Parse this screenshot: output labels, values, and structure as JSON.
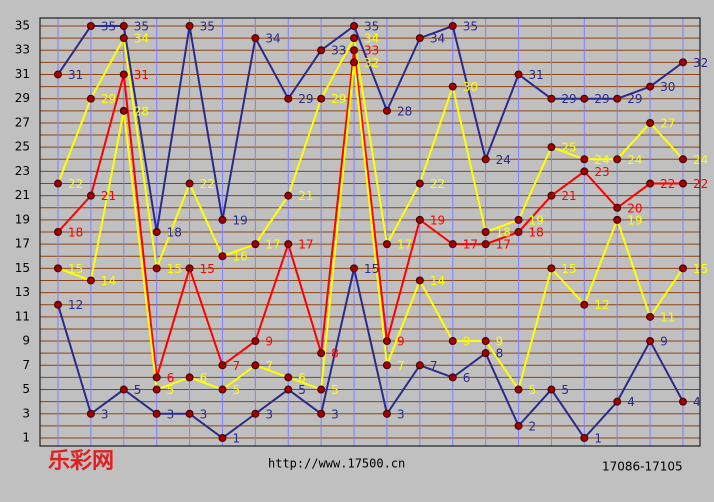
{
  "chart_data": {
    "type": "line",
    "categories": [
      null,
      null,
      null,
      null,
      null,
      null,
      null,
      null,
      null,
      null,
      null,
      null,
      null,
      null,
      null,
      null,
      null,
      null,
      null,
      null
    ],
    "ylim": [
      1,
      35
    ],
    "yticks": [
      1,
      3,
      5,
      7,
      9,
      11,
      13,
      15,
      17,
      19,
      21,
      23,
      25,
      27,
      29,
      31,
      33,
      35
    ],
    "grid": true,
    "series": [
      {
        "color": "#2b2b8c",
        "values": [
          31,
          35,
          35,
          18,
          35,
          19,
          34,
          29,
          33,
          35,
          28,
          34,
          35,
          24,
          31,
          29,
          29,
          29,
          30,
          32
        ]
      },
      {
        "color": "#ffff00",
        "values": [
          22,
          29,
          34,
          15,
          22,
          16,
          17,
          21,
          29,
          34,
          17,
          22,
          30,
          18,
          19,
          25,
          24,
          24,
          27,
          24
        ]
      },
      {
        "color": "#ff0000",
        "values": [
          18,
          21,
          31,
          6,
          15,
          7,
          9,
          17,
          8,
          33,
          9,
          19,
          17,
          17,
          18,
          21,
          23,
          20,
          22,
          22
        ]
      },
      {
        "color": "#ffff00",
        "values": [
          15,
          14,
          28,
          5,
          6,
          5,
          7,
          6,
          5,
          32,
          7,
          14,
          9,
          9,
          5,
          15,
          12,
          19,
          11,
          15
        ]
      },
      {
        "color": "#2b2b8c",
        "values": [
          12,
          3,
          5,
          3,
          3,
          1,
          3,
          5,
          3,
          15,
          3,
          7,
          6,
          8,
          2,
          5,
          1,
          4,
          9,
          4
        ]
      }
    ]
  },
  "footer": {
    "logo": "乐彩网",
    "url": "http://www.17500.cn",
    "period": "17086-17105"
  }
}
